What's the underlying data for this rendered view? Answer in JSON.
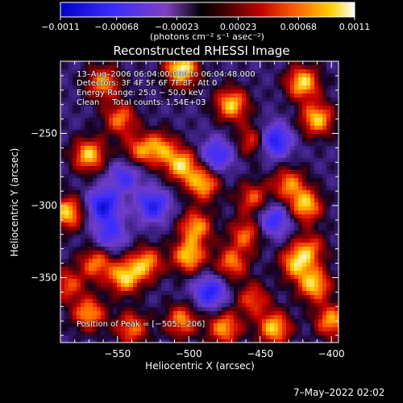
{
  "chart_data": {
    "type": "heatmap",
    "title": "Reconstructed RHESSI Image",
    "xlabel": "Heliocentric X (arcsec)",
    "ylabel": "Heliocentric Y (arcsec)",
    "x_ticks": [
      -550,
      -500,
      -450,
      -400
    ],
    "x_tick_labels": [
      "−550",
      "−500",
      "−450",
      "−400"
    ],
    "y_ticks": [
      -250,
      -300,
      -350
    ],
    "y_tick_labels": [
      "−250",
      "−300",
      "−350"
    ],
    "xlim": [
      -590,
      -395
    ],
    "ylim": [
      -395,
      -200
    ],
    "colorbar": {
      "min": -0.0011,
      "max": 0.0011,
      "tick_values": [
        -0.0011,
        -0.00068,
        -0.00023,
        0.00023,
        0.00068,
        0.0011
      ],
      "tick_labels": [
        "−0.0011",
        "−0.00068",
        "−0.00023",
        "0.00023",
        "0.00068",
        "0.0011"
      ],
      "unit_label": "(photons cm⁻² s⁻¹ asec⁻²)"
    },
    "annotations": [
      "13–Aug–2006 06:04:00.000 to 06:04:48.000",
      "Detectors: 3F 4F 5F 6F 7F 8F, Att 0",
      "Energy Range: 25.0 − 50.0 keV",
      "Clean     Total counts: 1.54E+03"
    ],
    "peak_label": "Position of Peak = [−505,−206]",
    "peak": {
      "x": -505,
      "y": -206
    },
    "hotspots": [
      {
        "x": -505,
        "y": -206,
        "value": 0.0011
      },
      {
        "x": -470,
        "y": -230,
        "value": 0.0009
      },
      {
        "x": -420,
        "y": -215,
        "value": 0.00095
      },
      {
        "x": -410,
        "y": -240,
        "value": 0.0009
      },
      {
        "x": -560,
        "y": -215,
        "value": 0.0008
      },
      {
        "x": -548,
        "y": -240,
        "value": 0.0007
      },
      {
        "x": -570,
        "y": -265,
        "value": 0.0009
      },
      {
        "x": -535,
        "y": -262,
        "value": 0.0006
      },
      {
        "x": -520,
        "y": -260,
        "value": 0.0007
      },
      {
        "x": -505,
        "y": -272,
        "value": 0.0009
      },
      {
        "x": -490,
        "y": -285,
        "value": 0.00085
      },
      {
        "x": -455,
        "y": -295,
        "value": 0.0006
      },
      {
        "x": -455,
        "y": -255,
        "value": 0.0006
      },
      {
        "x": -430,
        "y": -285,
        "value": 0.0007
      },
      {
        "x": -418,
        "y": -300,
        "value": 0.0009
      },
      {
        "x": -585,
        "y": -305,
        "value": 0.0009
      },
      {
        "x": -565,
        "y": -340,
        "value": 0.0007
      },
      {
        "x": -545,
        "y": -350,
        "value": 0.0009
      },
      {
        "x": -530,
        "y": -340,
        "value": 0.0008
      },
      {
        "x": -500,
        "y": -335,
        "value": 0.0009
      },
      {
        "x": -495,
        "y": -315,
        "value": 0.0008
      },
      {
        "x": -470,
        "y": -340,
        "value": 0.0007
      },
      {
        "x": -460,
        "y": -320,
        "value": 0.00065
      },
      {
        "x": -425,
        "y": -340,
        "value": 0.0008
      },
      {
        "x": -412,
        "y": -355,
        "value": 0.0009
      },
      {
        "x": -415,
        "y": -330,
        "value": 0.0006
      },
      {
        "x": -570,
        "y": -375,
        "value": 0.0008
      },
      {
        "x": -540,
        "y": -385,
        "value": 0.0007
      },
      {
        "x": -505,
        "y": -380,
        "value": 0.00075
      },
      {
        "x": -475,
        "y": -385,
        "value": 0.0008
      },
      {
        "x": -455,
        "y": -365,
        "value": 0.0006
      },
      {
        "x": -440,
        "y": -385,
        "value": 0.0009
      },
      {
        "x": -400,
        "y": -380,
        "value": 0.0008
      },
      {
        "x": -585,
        "y": -355,
        "value": 0.0006
      }
    ],
    "coldspots": [
      {
        "x": -560,
        "y": -300,
        "value": -0.0009
      },
      {
        "x": -525,
        "y": -300,
        "value": -0.0008
      },
      {
        "x": -480,
        "y": -265,
        "value": -0.0007
      },
      {
        "x": -440,
        "y": -255,
        "value": -0.0009
      },
      {
        "x": -485,
        "y": -360,
        "value": -0.0008
      },
      {
        "x": -440,
        "y": -310,
        "value": -0.0007
      },
      {
        "x": -555,
        "y": -320,
        "value": -0.0006
      },
      {
        "x": -545,
        "y": -280,
        "value": -0.0006
      }
    ]
  },
  "footer_timestamp": "7–May–2022 02:02"
}
